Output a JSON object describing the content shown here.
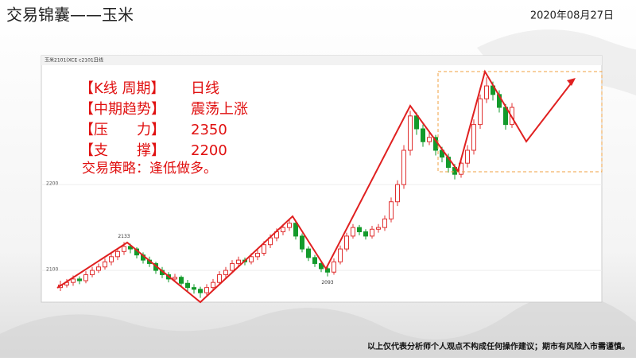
{
  "header": {
    "title": "交易锦囊——玉米",
    "date": "2020年08月27日"
  },
  "chart_data": {
    "type": "candlestick",
    "toolbar": {
      "symbol": "玉米2101(XCE c2101)",
      "period": "日线"
    },
    "ylim": [
      2063,
      2341
    ],
    "yticks": [
      2100,
      2200
    ],
    "up_color": "#e03030",
    "down_color": "#139a2b",
    "peak_label": 2133,
    "trough_label": 2093,
    "candles": [
      [
        2080,
        2088,
        2076,
        2083
      ],
      [
        2083,
        2090,
        2080,
        2086
      ],
      [
        2086,
        2094,
        2082,
        2090
      ],
      [
        2090,
        2093,
        2084,
        2088
      ],
      [
        2088,
        2099,
        2085,
        2095
      ],
      [
        2095,
        2104,
        2092,
        2100
      ],
      [
        2100,
        2108,
        2097,
        2104
      ],
      [
        2104,
        2114,
        2101,
        2110
      ],
      [
        2110,
        2120,
        2106,
        2116
      ],
      [
        2116,
        2126,
        2112,
        2122
      ],
      [
        2122,
        2133,
        2118,
        2128
      ],
      [
        2128,
        2131,
        2120,
        2125
      ],
      [
        2125,
        2127,
        2114,
        2118
      ],
      [
        2118,
        2121,
        2108,
        2112
      ],
      [
        2112,
        2116,
        2104,
        2108
      ],
      [
        2108,
        2110,
        2096,
        2100
      ],
      [
        2100,
        2104,
        2091,
        2095
      ],
      [
        2095,
        2098,
        2086,
        2090
      ],
      [
        2090,
        2096,
        2087,
        2092
      ],
      [
        2092,
        2094,
        2081,
        2085
      ],
      [
        2085,
        2089,
        2076,
        2080
      ],
      [
        2080,
        2084,
        2073,
        2078
      ],
      [
        2078,
        2081,
        2068,
        2074
      ],
      [
        2074,
        2084,
        2071,
        2080
      ],
      [
        2080,
        2090,
        2077,
        2086
      ],
      [
        2086,
        2099,
        2083,
        2095
      ],
      [
        2095,
        2104,
        2091,
        2100
      ],
      [
        2100,
        2112,
        2097,
        2108
      ],
      [
        2108,
        2116,
        2104,
        2112
      ],
      [
        2112,
        2115,
        2106,
        2110
      ],
      [
        2110,
        2120,
        2107,
        2116
      ],
      [
        2116,
        2124,
        2112,
        2120
      ],
      [
        2120,
        2134,
        2117,
        2130
      ],
      [
        2130,
        2142,
        2126,
        2138
      ],
      [
        2138,
        2149,
        2134,
        2145
      ],
      [
        2145,
        2154,
        2141,
        2150
      ],
      [
        2150,
        2160,
        2146,
        2155
      ],
      [
        2155,
        2157,
        2136,
        2140
      ],
      [
        2140,
        2143,
        2121,
        2125
      ],
      [
        2125,
        2128,
        2111,
        2115
      ],
      [
        2115,
        2118,
        2104,
        2108
      ],
      [
        2108,
        2111,
        2098,
        2102
      ],
      [
        2102,
        2105,
        2093,
        2098
      ],
      [
        2098,
        2114,
        2095,
        2110
      ],
      [
        2110,
        2129,
        2107,
        2125
      ],
      [
        2125,
        2144,
        2122,
        2140
      ],
      [
        2140,
        2154,
        2137,
        2150
      ],
      [
        2150,
        2153,
        2141,
        2145
      ],
      [
        2145,
        2148,
        2136,
        2140
      ],
      [
        2140,
        2152,
        2137,
        2148
      ],
      [
        2148,
        2154,
        2144,
        2150
      ],
      [
        2150,
        2164,
        2146,
        2160
      ],
      [
        2160,
        2185,
        2156,
        2180
      ],
      [
        2180,
        2205,
        2175,
        2200
      ],
      [
        2200,
        2246,
        2195,
        2240
      ],
      [
        2240,
        2286,
        2234,
        2280
      ],
      [
        2280,
        2284,
        2258,
        2265
      ],
      [
        2265,
        2270,
        2244,
        2250
      ],
      [
        2250,
        2262,
        2246,
        2255
      ],
      [
        2255,
        2258,
        2234,
        2240
      ],
      [
        2240,
        2244,
        2226,
        2232
      ],
      [
        2232,
        2236,
        2214,
        2220
      ],
      [
        2220,
        2224,
        2206,
        2212
      ],
      [
        2212,
        2230,
        2208,
        2225
      ],
      [
        2225,
        2246,
        2220,
        2240
      ],
      [
        2240,
        2276,
        2235,
        2270
      ],
      [
        2270,
        2305,
        2265,
        2300
      ],
      [
        2300,
        2325,
        2295,
        2315
      ],
      [
        2315,
        2320,
        2298,
        2305
      ],
      [
        2305,
        2310,
        2284,
        2290
      ],
      [
        2290,
        2294,
        2264,
        2270
      ],
      [
        2270,
        2295,
        2266,
        2290
      ]
    ]
  },
  "analysis": [
    {
      "label": "【K线 周期】",
      "value": "日线"
    },
    {
      "label": "【中期趋势】",
      "value": "震荡上涨"
    },
    {
      "label": "【压　　力】",
      "value": 2350
    },
    {
      "label": "【支　　撑】",
      "value": 2200
    }
  ],
  "strategy": "交易策略：逢低做多。",
  "disclaimer": "以上仅代表分析师个人观点不构成任何操作建议；期市有风险入市需谨慎。"
}
